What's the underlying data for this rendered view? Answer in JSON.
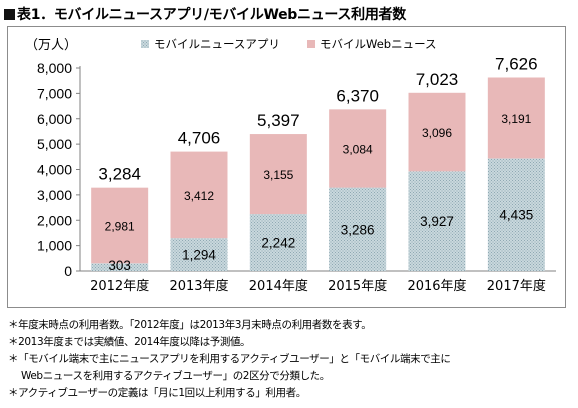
{
  "figure": {
    "title": "表1．モバイルニュースアプリ/モバイルWebニュース利用者数"
  },
  "colors": {
    "app_fill": "#c9d8dd",
    "app_hatch": "#8fa9b3",
    "web_fill": "#e8b8b8",
    "axis": "#808080",
    "grid": "#d0d0d0"
  },
  "chart_data": {
    "type": "bar",
    "stacked": true,
    "unit_label": "（万人）",
    "categories": [
      "2012年度",
      "2013年度",
      "2014年度",
      "2015年度",
      "2016年度",
      "2017年度"
    ],
    "series": [
      {
        "name": "モバイルニュースアプリ",
        "values": [
          303,
          1294,
          2242,
          3286,
          3927,
          4435
        ],
        "labels": [
          "303",
          "1,294",
          "2,242",
          "3,286",
          "3,927",
          "4,435"
        ]
      },
      {
        "name": "モバイルWebニュース",
        "values": [
          2981,
          3412,
          3155,
          3084,
          3096,
          3191
        ],
        "labels": [
          "2,981",
          "3,412",
          "3,155",
          "3,084",
          "3,096",
          "3,191"
        ]
      }
    ],
    "totals": [
      3284,
      4706,
      5397,
      6370,
      7023,
      7626
    ],
    "total_labels": [
      "3,284",
      "4,706",
      "5,397",
      "6,370",
      "7,023",
      "7,626"
    ],
    "ylim": [
      0,
      8000
    ],
    "yticks": [
      0,
      1000,
      2000,
      3000,
      4000,
      5000,
      6000,
      7000,
      8000
    ],
    "ytick_labels": [
      "0",
      "1,000",
      "2,000",
      "3,000",
      "4,000",
      "5,000",
      "6,000",
      "7,000",
      "8,000"
    ],
    "legend_position": "top-center",
    "grid": false
  },
  "notes": [
    "＊年度末時点の利用者数。「2012年度」は2013年3月末時点の利用者数を表す。",
    "＊2013年度までは実績値、2014年度以降は予測値。",
    "＊「モバイル端末で主にニュースアプリを利用するアクティブユーザー」と「モバイル端末で主に",
    "Webニュースを利用するアクティブユーザー」の2区分で分類した。",
    "＊アクティブユーザーの定義は「月に1回以上利用する」利用者。"
  ]
}
